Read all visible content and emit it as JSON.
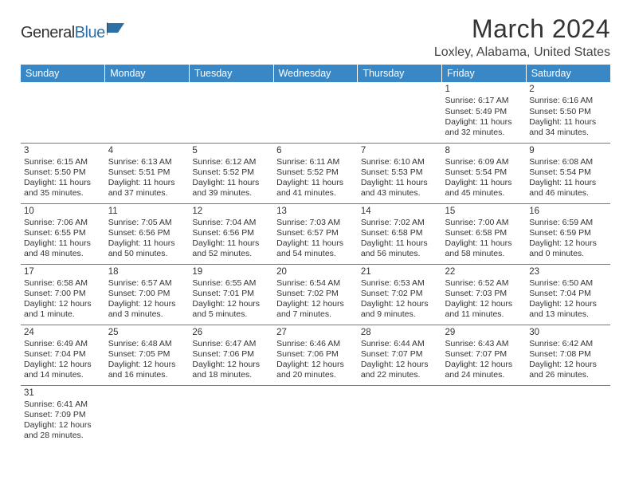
{
  "brand": {
    "name_part1": "General",
    "name_part2": "Blue"
  },
  "title": "March 2024",
  "location": "Loxley, Alabama, United States",
  "colors": {
    "header_bg": "#3a87c6",
    "header_text": "#ffffff",
    "row_divider": "#3a87c6",
    "text": "#333333",
    "brand_blue": "#2f6fa8",
    "background": "#ffffff"
  },
  "layout": {
    "columns": 7,
    "rows": 6,
    "cell_fontsize_pt": 8,
    "header_fontsize_pt": 9.5,
    "title_fontsize_pt": 24,
    "location_fontsize_pt": 12
  },
  "weekdays": [
    "Sunday",
    "Monday",
    "Tuesday",
    "Wednesday",
    "Thursday",
    "Friday",
    "Saturday"
  ],
  "weeks": [
    [
      null,
      null,
      null,
      null,
      null,
      {
        "n": "1",
        "sr": "Sunrise: 6:17 AM",
        "ss": "Sunset: 5:49 PM",
        "d1": "Daylight: 11 hours",
        "d2": "and 32 minutes."
      },
      {
        "n": "2",
        "sr": "Sunrise: 6:16 AM",
        "ss": "Sunset: 5:50 PM",
        "d1": "Daylight: 11 hours",
        "d2": "and 34 minutes."
      }
    ],
    [
      {
        "n": "3",
        "sr": "Sunrise: 6:15 AM",
        "ss": "Sunset: 5:50 PM",
        "d1": "Daylight: 11 hours",
        "d2": "and 35 minutes."
      },
      {
        "n": "4",
        "sr": "Sunrise: 6:13 AM",
        "ss": "Sunset: 5:51 PM",
        "d1": "Daylight: 11 hours",
        "d2": "and 37 minutes."
      },
      {
        "n": "5",
        "sr": "Sunrise: 6:12 AM",
        "ss": "Sunset: 5:52 PM",
        "d1": "Daylight: 11 hours",
        "d2": "and 39 minutes."
      },
      {
        "n": "6",
        "sr": "Sunrise: 6:11 AM",
        "ss": "Sunset: 5:52 PM",
        "d1": "Daylight: 11 hours",
        "d2": "and 41 minutes."
      },
      {
        "n": "7",
        "sr": "Sunrise: 6:10 AM",
        "ss": "Sunset: 5:53 PM",
        "d1": "Daylight: 11 hours",
        "d2": "and 43 minutes."
      },
      {
        "n": "8",
        "sr": "Sunrise: 6:09 AM",
        "ss": "Sunset: 5:54 PM",
        "d1": "Daylight: 11 hours",
        "d2": "and 45 minutes."
      },
      {
        "n": "9",
        "sr": "Sunrise: 6:08 AM",
        "ss": "Sunset: 5:54 PM",
        "d1": "Daylight: 11 hours",
        "d2": "and 46 minutes."
      }
    ],
    [
      {
        "n": "10",
        "sr": "Sunrise: 7:06 AM",
        "ss": "Sunset: 6:55 PM",
        "d1": "Daylight: 11 hours",
        "d2": "and 48 minutes."
      },
      {
        "n": "11",
        "sr": "Sunrise: 7:05 AM",
        "ss": "Sunset: 6:56 PM",
        "d1": "Daylight: 11 hours",
        "d2": "and 50 minutes."
      },
      {
        "n": "12",
        "sr": "Sunrise: 7:04 AM",
        "ss": "Sunset: 6:56 PM",
        "d1": "Daylight: 11 hours",
        "d2": "and 52 minutes."
      },
      {
        "n": "13",
        "sr": "Sunrise: 7:03 AM",
        "ss": "Sunset: 6:57 PM",
        "d1": "Daylight: 11 hours",
        "d2": "and 54 minutes."
      },
      {
        "n": "14",
        "sr": "Sunrise: 7:02 AM",
        "ss": "Sunset: 6:58 PM",
        "d1": "Daylight: 11 hours",
        "d2": "and 56 minutes."
      },
      {
        "n": "15",
        "sr": "Sunrise: 7:00 AM",
        "ss": "Sunset: 6:58 PM",
        "d1": "Daylight: 11 hours",
        "d2": "and 58 minutes."
      },
      {
        "n": "16",
        "sr": "Sunrise: 6:59 AM",
        "ss": "Sunset: 6:59 PM",
        "d1": "Daylight: 12 hours",
        "d2": "and 0 minutes."
      }
    ],
    [
      {
        "n": "17",
        "sr": "Sunrise: 6:58 AM",
        "ss": "Sunset: 7:00 PM",
        "d1": "Daylight: 12 hours",
        "d2": "and 1 minute."
      },
      {
        "n": "18",
        "sr": "Sunrise: 6:57 AM",
        "ss": "Sunset: 7:00 PM",
        "d1": "Daylight: 12 hours",
        "d2": "and 3 minutes."
      },
      {
        "n": "19",
        "sr": "Sunrise: 6:55 AM",
        "ss": "Sunset: 7:01 PM",
        "d1": "Daylight: 12 hours",
        "d2": "and 5 minutes."
      },
      {
        "n": "20",
        "sr": "Sunrise: 6:54 AM",
        "ss": "Sunset: 7:02 PM",
        "d1": "Daylight: 12 hours",
        "d2": "and 7 minutes."
      },
      {
        "n": "21",
        "sr": "Sunrise: 6:53 AM",
        "ss": "Sunset: 7:02 PM",
        "d1": "Daylight: 12 hours",
        "d2": "and 9 minutes."
      },
      {
        "n": "22",
        "sr": "Sunrise: 6:52 AM",
        "ss": "Sunset: 7:03 PM",
        "d1": "Daylight: 12 hours",
        "d2": "and 11 minutes."
      },
      {
        "n": "23",
        "sr": "Sunrise: 6:50 AM",
        "ss": "Sunset: 7:04 PM",
        "d1": "Daylight: 12 hours",
        "d2": "and 13 minutes."
      }
    ],
    [
      {
        "n": "24",
        "sr": "Sunrise: 6:49 AM",
        "ss": "Sunset: 7:04 PM",
        "d1": "Daylight: 12 hours",
        "d2": "and 14 minutes."
      },
      {
        "n": "25",
        "sr": "Sunrise: 6:48 AM",
        "ss": "Sunset: 7:05 PM",
        "d1": "Daylight: 12 hours",
        "d2": "and 16 minutes."
      },
      {
        "n": "26",
        "sr": "Sunrise: 6:47 AM",
        "ss": "Sunset: 7:06 PM",
        "d1": "Daylight: 12 hours",
        "d2": "and 18 minutes."
      },
      {
        "n": "27",
        "sr": "Sunrise: 6:46 AM",
        "ss": "Sunset: 7:06 PM",
        "d1": "Daylight: 12 hours",
        "d2": "and 20 minutes."
      },
      {
        "n": "28",
        "sr": "Sunrise: 6:44 AM",
        "ss": "Sunset: 7:07 PM",
        "d1": "Daylight: 12 hours",
        "d2": "and 22 minutes."
      },
      {
        "n": "29",
        "sr": "Sunrise: 6:43 AM",
        "ss": "Sunset: 7:07 PM",
        "d1": "Daylight: 12 hours",
        "d2": "and 24 minutes."
      },
      {
        "n": "30",
        "sr": "Sunrise: 6:42 AM",
        "ss": "Sunset: 7:08 PM",
        "d1": "Daylight: 12 hours",
        "d2": "and 26 minutes."
      }
    ],
    [
      {
        "n": "31",
        "sr": "Sunrise: 6:41 AM",
        "ss": "Sunset: 7:09 PM",
        "d1": "Daylight: 12 hours",
        "d2": "and 28 minutes."
      },
      null,
      null,
      null,
      null,
      null,
      null
    ]
  ]
}
